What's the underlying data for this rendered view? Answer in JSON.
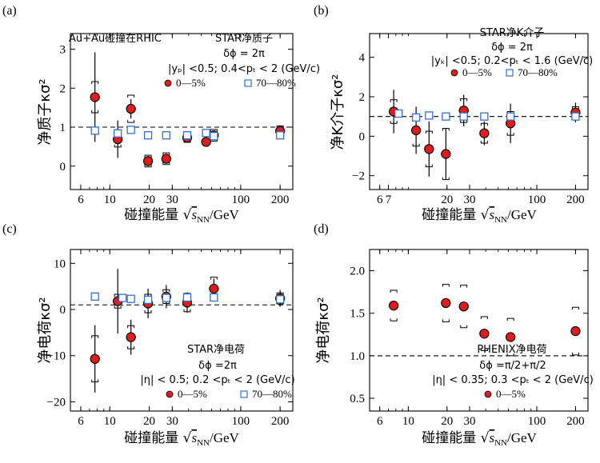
{
  "figure": {
    "colors": {
      "filled_marker": "#e01c1c",
      "open_marker": "#2f6fd6",
      "axis": "#000000",
      "reference_line": "#000000"
    }
  },
  "chart_data": [
    {
      "panel_label": "(a)",
      "type": "scatter",
      "x_scale": "log",
      "xlim": [
        5,
        250
      ],
      "ylim": [
        -0.6,
        3.4
      ],
      "x_ticks": [
        6,
        10,
        20,
        30,
        100,
        200
      ],
      "y_ticks": [
        0,
        1,
        2,
        3
      ],
      "xlabel_prefix": "碰撞能量",
      "xlabel_sqrt": "s",
      "xlabel_sub": "NN",
      "xlabel_unit": "/GeV",
      "ylabel": "净质子κσ²",
      "reference_line": 1,
      "annotations": [
        "Au+Au碰撞在RHIC",
        "STAR净质子",
        "δϕ = 2π",
        "|yₚ| <0.5; 0.4<pₜ < 2 (GeV/c)"
      ],
      "series": [
        {
          "name": "0—5%",
          "marker": "filled-circle",
          "x": [
            7.7,
            11.5,
            14.5,
            19.6,
            27,
            39,
            54.4,
            62.4,
            200
          ],
          "y": [
            1.77,
            0.69,
            1.47,
            0.13,
            0.19,
            0.73,
            0.62,
            0.79,
            0.9
          ],
          "stat_err": [
            1.15,
            0.48,
            0.25,
            0.13,
            0.08,
            0.12,
            0.09,
            0.12,
            0.15
          ],
          "sys_err": [
            0.4,
            0.2,
            0.35,
            0.15,
            0.15,
            0.12,
            0.08,
            0.15,
            0.13
          ]
        },
        {
          "name": "70—80%",
          "marker": "open-square",
          "x": [
            7.7,
            11.5,
            14.5,
            19.6,
            27,
            39,
            54.4,
            62.4,
            200
          ],
          "y": [
            0.91,
            0.84,
            0.93,
            0.79,
            0.79,
            0.79,
            0.85,
            0.77,
            0.79
          ],
          "stat_err": [
            0,
            0,
            0,
            0,
            0,
            0,
            0,
            0,
            0
          ],
          "sys_err": [
            0,
            0,
            0,
            0,
            0,
            0,
            0,
            0,
            0
          ]
        }
      ],
      "legend": [
        "0—5%",
        "70—80%"
      ]
    },
    {
      "panel_label": "(b)",
      "type": "scatter",
      "x_scale": "log",
      "xlim": [
        5,
        250
      ],
      "ylim": [
        -2.7,
        5.2
      ],
      "x_ticks": [
        6,
        7,
        20,
        30,
        100,
        200
      ],
      "y_ticks": [
        -2,
        0,
        2,
        4
      ],
      "xlabel_prefix": "碰撞能量",
      "xlabel_sqrt": "s",
      "xlabel_sub": "NN",
      "xlabel_unit": "/GeV",
      "ylabel": "净K介子κσ²",
      "reference_line": 1,
      "annotations": [
        "STAR净K介子",
        "δϕ = 2π",
        "|yₖ| <0.5; 0.2<pₜ < 1.6 (GeV/c)"
      ],
      "series": [
        {
          "name": "0—5%",
          "marker": "filled-circle",
          "x": [
            7.7,
            11.5,
            14.5,
            19.6,
            27,
            39,
            62.4,
            200
          ],
          "y": [
            1.25,
            0.3,
            -0.65,
            -0.9,
            1.3,
            0.15,
            0.65,
            1.2
          ],
          "stat_err": [
            1.1,
            1.2,
            1.4,
            1.3,
            0.8,
            0.6,
            1.0,
            0.5
          ],
          "sys_err": [
            0.6,
            0.8,
            0.9,
            1.3,
            0.6,
            0.5,
            0.6,
            0.3
          ]
        },
        {
          "name": "70—80%",
          "marker": "open-square",
          "x": [
            8.4,
            11.5,
            14.5,
            19.6,
            27,
            39,
            62.4,
            200
          ],
          "y": [
            1.15,
            0.95,
            1.05,
            1.0,
            1.0,
            1.0,
            1.0,
            1.0
          ],
          "stat_err": [
            0,
            0,
            0,
            0,
            0,
            0,
            0,
            0
          ],
          "sys_err": [
            0,
            0,
            0,
            0,
            0,
            0,
            0,
            0
          ]
        }
      ],
      "legend": [
        "0—5%",
        "70—80%"
      ]
    },
    {
      "panel_label": "(c)",
      "type": "scatter",
      "x_scale": "log",
      "xlim": [
        5,
        250
      ],
      "ylim": [
        -22,
        13
      ],
      "x_ticks": [
        6,
        10,
        20,
        30,
        100,
        200
      ],
      "y_ticks": [
        -20,
        -10,
        0,
        10
      ],
      "xlabel_prefix": "碰撞能量",
      "xlabel_sqrt": "s",
      "xlabel_sub": "NN",
      "xlabel_unit": "/GeV",
      "ylabel": "净电荷κσ²",
      "reference_line": 1,
      "annotations": [
        "STAR净电荷",
        "δϕ =2π",
        "|η| < 0.5; 0.2 <pₜ < 2 (GeV/c)"
      ],
      "series": [
        {
          "name": "0—5%",
          "marker": "filled-circle",
          "x": [
            7.7,
            11.5,
            14.5,
            19.6,
            27,
            39,
            62.4,
            200
          ],
          "y": [
            -10.7,
            1.8,
            -6.0,
            1.3,
            2.8,
            1.5,
            4.5,
            2.4
          ],
          "stat_err": [
            7.3,
            7.0,
            3.8,
            3.2,
            2.5,
            2.2,
            2.2,
            1.8
          ],
          "sys_err": [
            5.0,
            1.5,
            2.5,
            2.0,
            1.5,
            2.0,
            2.5,
            1.2
          ]
        },
        {
          "name": "70—80%",
          "marker": "open-square",
          "x": [
            7.7,
            12.5,
            14.5,
            19.6,
            27,
            39,
            62.4,
            200
          ],
          "y": [
            2.8,
            2.5,
            2.3,
            2.1,
            2.5,
            2.6,
            2.6,
            2.2
          ],
          "stat_err": [
            0,
            0,
            0,
            0,
            0,
            0,
            0,
            0
          ],
          "sys_err": [
            0,
            0,
            0,
            0,
            0,
            0,
            0,
            0
          ]
        }
      ],
      "legend": [
        "0—5%",
        "70—80%"
      ]
    },
    {
      "panel_label": "(d)",
      "type": "scatter",
      "x_scale": "log",
      "xlim": [
        5,
        250
      ],
      "ylim": [
        0.35,
        2.25
      ],
      "x_ticks": [
        6,
        10,
        20,
        30,
        100,
        200
      ],
      "y_ticks": [
        0.5,
        1.0,
        1.5,
        2.0
      ],
      "y_tick_labels": [
        "0.5",
        "1.0",
        "1.5",
        "2.0"
      ],
      "xlabel_prefix": "碰撞能量",
      "xlabel_sqrt": "s",
      "xlabel_sub": "NN",
      "xlabel_unit": "/GeV",
      "ylabel": "净电荷κσ²",
      "reference_line": 1,
      "annotations": [
        "PHENIX净电荷",
        "δϕ =π/2+π/2",
        "|η| < 0.35; 0.3 <pₜ < 2 (GeV/c)"
      ],
      "series": [
        {
          "name": "0—5%",
          "marker": "filled-circle",
          "x": [
            7.7,
            19.6,
            27,
            39,
            62.4,
            200
          ],
          "y": [
            1.59,
            1.62,
            1.58,
            1.26,
            1.22,
            1.29
          ],
          "stat_err": [
            0,
            0,
            0,
            0,
            0,
            0
          ],
          "sys_err": [
            0.18,
            0.22,
            0.25,
            0.2,
            0.22,
            0.28
          ]
        }
      ],
      "legend": [
        "0—5%"
      ]
    }
  ]
}
